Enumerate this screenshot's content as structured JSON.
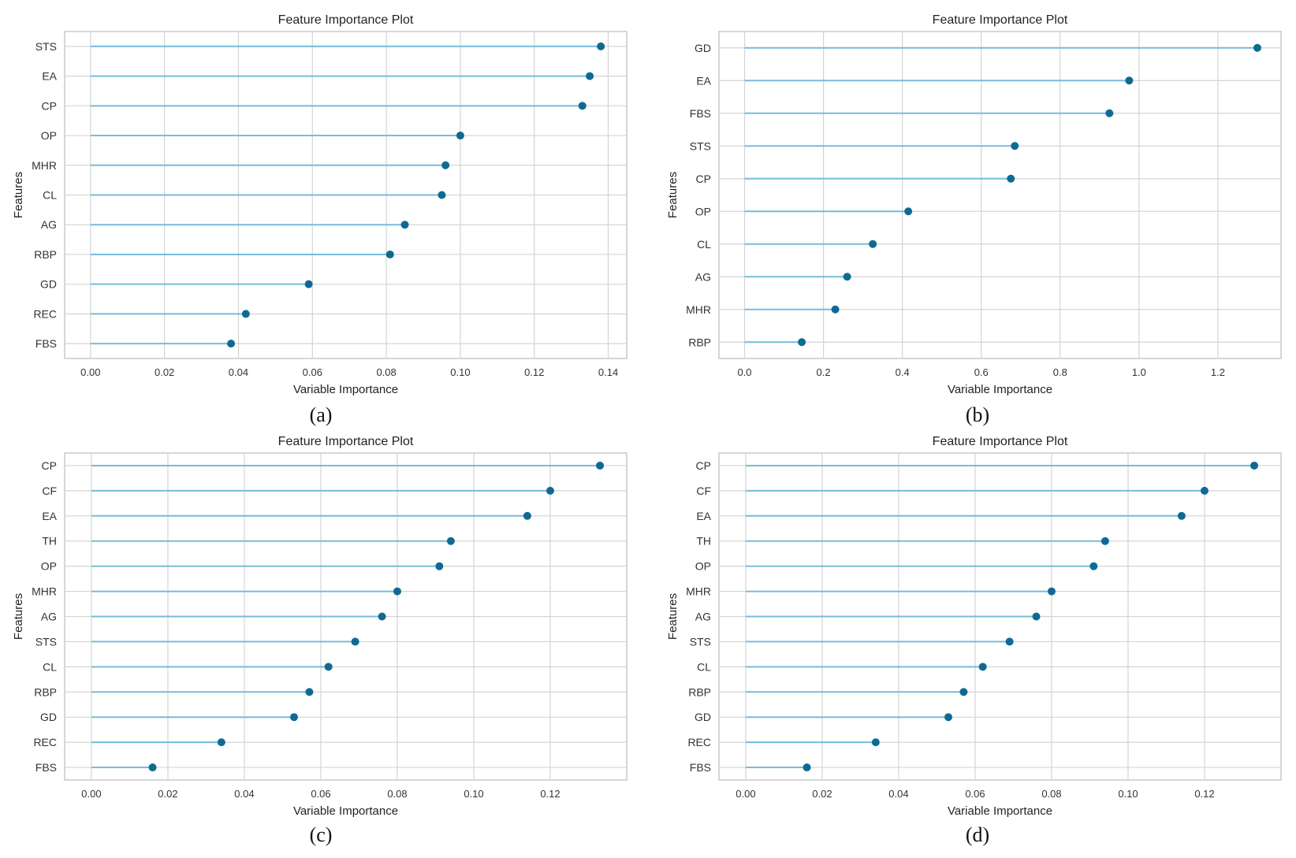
{
  "colors": {
    "stem": "#76bcd9",
    "dot": "#0f6a93",
    "grid": "#d4d4d4",
    "frame": "#c8c8c8",
    "text": "#333333"
  },
  "chart_data": [
    {
      "type": "lollipop",
      "caption": "(a)",
      "title": "Feature Importance Plot",
      "xlabel": "Variable Importance",
      "ylabel": "Features",
      "xlim": [
        -0.007,
        0.145
      ],
      "xticks": [
        0.0,
        0.02,
        0.04,
        0.06,
        0.08,
        0.1,
        0.12,
        0.14
      ],
      "xtick_labels": [
        "0.00",
        "0.02",
        "0.04",
        "0.06",
        "0.08",
        "0.10",
        "0.12",
        "0.14"
      ],
      "grid": true,
      "categories": [
        "STS",
        "EA",
        "CP",
        "OP",
        "MHR",
        "CL",
        "AG",
        "RBP",
        "GD",
        "REC",
        "FBS"
      ],
      "values": [
        0.138,
        0.135,
        0.133,
        0.1,
        0.096,
        0.095,
        0.085,
        0.081,
        0.059,
        0.042,
        0.038
      ]
    },
    {
      "type": "lollipop",
      "caption": "(b)",
      "title": "Feature Importance Plot",
      "xlabel": "Variable Importance",
      "ylabel": "Features",
      "xlim": [
        -0.065,
        1.36
      ],
      "xticks": [
        0.0,
        0.2,
        0.4,
        0.6,
        0.8,
        1.0,
        1.2
      ],
      "xtick_labels": [
        "0.0",
        "0.2",
        "0.4",
        "0.6",
        "0.8",
        "1.0",
        "1.2"
      ],
      "grid": true,
      "categories": [
        "GD",
        "EA",
        "FBS",
        "STS",
        "CP",
        "OP",
        "CL",
        "AG",
        "MHR",
        "RBP"
      ],
      "values": [
        1.3,
        0.975,
        0.925,
        0.685,
        0.675,
        0.415,
        0.325,
        0.26,
        0.23,
        0.145
      ]
    },
    {
      "type": "lollipop",
      "caption": "(c)",
      "title": "Feature Importance Plot",
      "xlabel": "Variable Importance",
      "ylabel": "Features",
      "xlim": [
        -0.007,
        0.14
      ],
      "xticks": [
        0.0,
        0.02,
        0.04,
        0.06,
        0.08,
        0.1,
        0.12
      ],
      "xtick_labels": [
        "0.00",
        "0.02",
        "0.04",
        "0.06",
        "0.08",
        "0.10",
        "0.12"
      ],
      "grid": true,
      "categories": [
        "CP",
        "CF",
        "EA",
        "TH",
        "OP",
        "MHR",
        "AG",
        "STS",
        "CL",
        "RBP",
        "GD",
        "REC",
        "FBS"
      ],
      "values": [
        0.133,
        0.12,
        0.114,
        0.094,
        0.091,
        0.08,
        0.076,
        0.069,
        0.062,
        0.057,
        0.053,
        0.034,
        0.016
      ]
    },
    {
      "type": "lollipop",
      "caption": "(d)",
      "title": "Feature Importance Plot",
      "xlabel": "Variable Importance",
      "ylabel": "Features",
      "xlim": [
        -0.007,
        0.14
      ],
      "xticks": [
        0.0,
        0.02,
        0.04,
        0.06,
        0.08,
        0.1,
        0.12
      ],
      "xtick_labels": [
        "0.00",
        "0.02",
        "0.04",
        "0.06",
        "0.08",
        "0.10",
        "0.12"
      ],
      "grid": true,
      "categories": [
        "CP",
        "CF",
        "EA",
        "TH",
        "OP",
        "MHR",
        "AG",
        "STS",
        "CL",
        "RBP",
        "GD",
        "REC",
        "FBS"
      ],
      "values": [
        0.133,
        0.12,
        0.114,
        0.094,
        0.091,
        0.08,
        0.076,
        0.069,
        0.062,
        0.057,
        0.053,
        0.034,
        0.016
      ]
    }
  ]
}
